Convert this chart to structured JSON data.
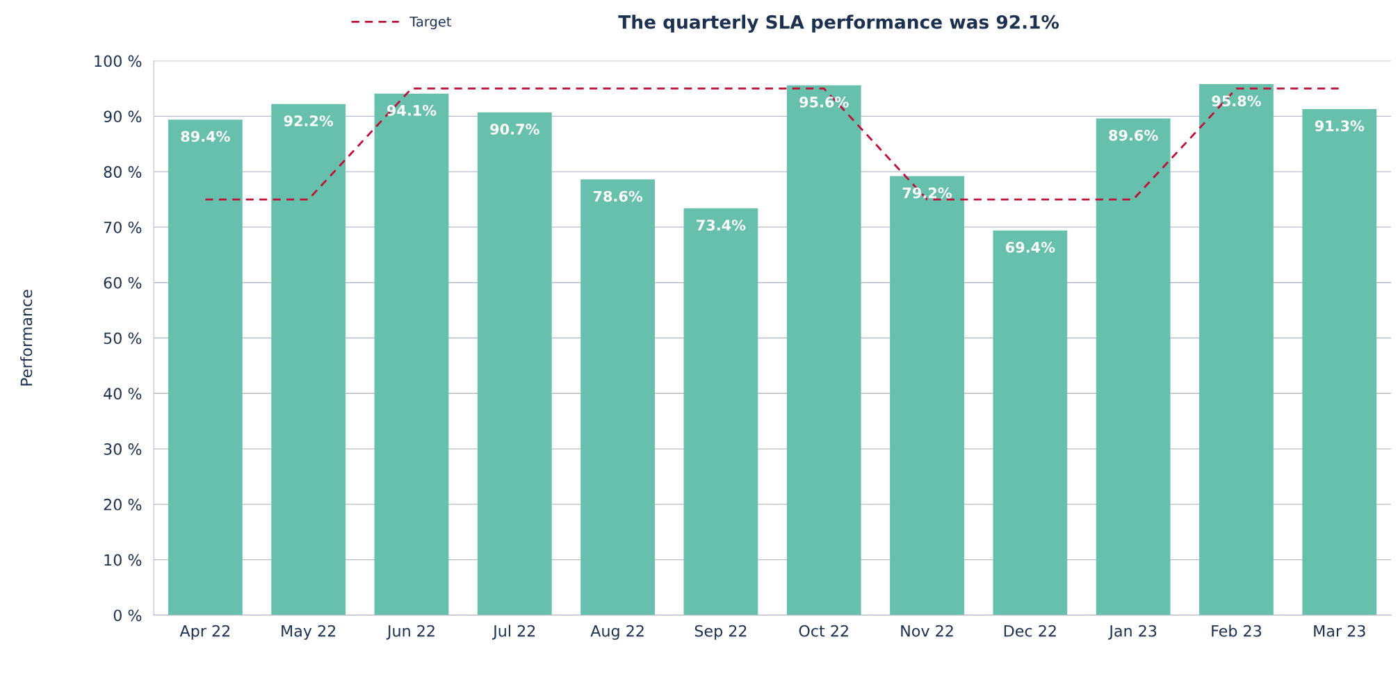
{
  "chart_data": {
    "type": "bar",
    "title": "The quarterly SLA performance was 92.1%",
    "ylabel": "Performance",
    "categories": [
      "Apr 22",
      "May 22",
      "Jun 22",
      "Jul 22",
      "Aug 22",
      "Sep 22",
      "Oct 22",
      "Nov 22",
      "Dec 22",
      "Jan 23",
      "Feb 23",
      "Mar 23"
    ],
    "series": [
      {
        "color": "#66c0ac",
        "values": [
          89.4,
          92.2,
          94.1,
          90.7,
          78.6,
          73.4,
          95.6,
          79.2,
          69.4,
          89.6,
          95.8,
          91.3
        ],
        "value_labels": [
          "89.4%",
          "92.2%",
          "94.1%",
          "90.7%",
          "78.6%",
          "73.4%",
          "95.6%",
          "79.2%",
          "69.4%",
          "89.6%",
          "95.8%",
          "91.3%"
        ]
      },
      {
        "type": "line",
        "name": "Target",
        "color": "#c0103a",
        "line_style": "dashed",
        "marker": "none",
        "values": [
          75,
          75,
          95,
          95,
          95,
          95,
          95,
          75,
          75,
          75,
          95,
          95
        ]
      }
    ],
    "ylim": [
      0,
      100
    ],
    "yticks": [
      {
        "value": 0,
        "label": "0 %"
      },
      {
        "value": 10,
        "label": "10 %"
      },
      {
        "value": 20,
        "label": "20 %"
      },
      {
        "value": 30,
        "label": "30 %"
      },
      {
        "value": 40,
        "label": "40 %"
      },
      {
        "value": 50,
        "label": "50 %"
      },
      {
        "value": 60,
        "label": "60 %"
      },
      {
        "value": 70,
        "label": "70 %"
      },
      {
        "value": 80,
        "label": "80 %"
      },
      {
        "value": 90,
        "label": "90 %"
      },
      {
        "value": 100,
        "label": "100 %"
      }
    ],
    "grid": "y",
    "legend": "top left"
  }
}
